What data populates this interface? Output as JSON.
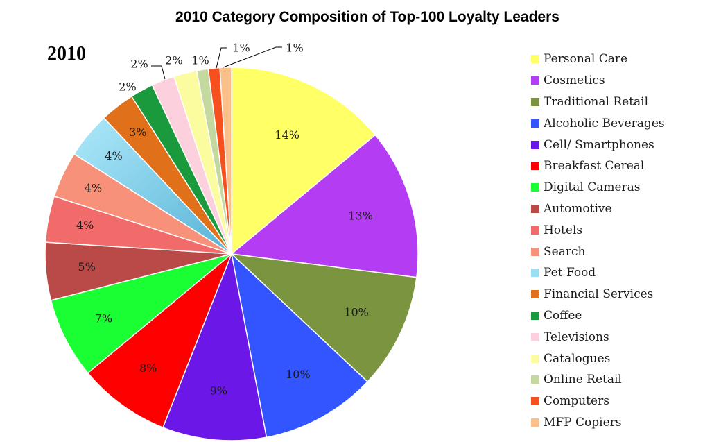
{
  "chart_data": {
    "type": "pie",
    "title": "2010 Category Composition of Top-100 Loyalty Leaders",
    "panel_label": "2010",
    "legend_position": "right",
    "slices": [
      {
        "name": "Personal Care",
        "value": 14,
        "label": "14%",
        "color": "#ffff66"
      },
      {
        "name": "Cosmetics",
        "value": 13,
        "label": "13%",
        "color": "#b43cf2"
      },
      {
        "name": "Traditional Retail",
        "value": 10,
        "label": "10%",
        "color": "#7a9440"
      },
      {
        "name": "Alcoholic Beverages",
        "value": 10,
        "label": "10%",
        "color": "#3355ff"
      },
      {
        "name": "Cell/ Smartphones",
        "value": 9,
        "label": "9%",
        "color": "#6a17e8"
      },
      {
        "name": "Breakfast Cereal",
        "value": 8,
        "label": "8%",
        "color": "#ff0000"
      },
      {
        "name": "Digital Cameras",
        "value": 7,
        "label": "7%",
        "color": "#1aff33"
      },
      {
        "name": "Automotive",
        "value": 5,
        "label": "5%",
        "color": "#b94a48"
      },
      {
        "name": "Hotels",
        "value": 4,
        "label": "4%",
        "color": "#f26b6b"
      },
      {
        "name": "Search",
        "value": 4,
        "label": "4%",
        "color": "#f8917a"
      },
      {
        "name": "Pet Food",
        "value": 4,
        "label": "4%",
        "color": "#99e0f5"
      },
      {
        "name": "Financial Services",
        "value": 3,
        "label": "3%",
        "color": "#e0701a"
      },
      {
        "name": "Coffee",
        "value": 2,
        "label": "2%",
        "color": "#1a9a3c"
      },
      {
        "name": "Televisions",
        "value": 2,
        "label": "2%",
        "color": "#fcd0dc"
      },
      {
        "name": "Catalogues",
        "value": 2,
        "label": "2%",
        "color": "#fbfba0"
      },
      {
        "name": "Online Retail",
        "value": 1,
        "label": "1%",
        "color": "#c3d9a0"
      },
      {
        "name": "Computers",
        "value": 1,
        "label": "1%",
        "color": "#f5501e"
      },
      {
        "name": "MFP Copiers",
        "value": 1,
        "label": "1%",
        "color": "#fbbf8a"
      }
    ]
  }
}
